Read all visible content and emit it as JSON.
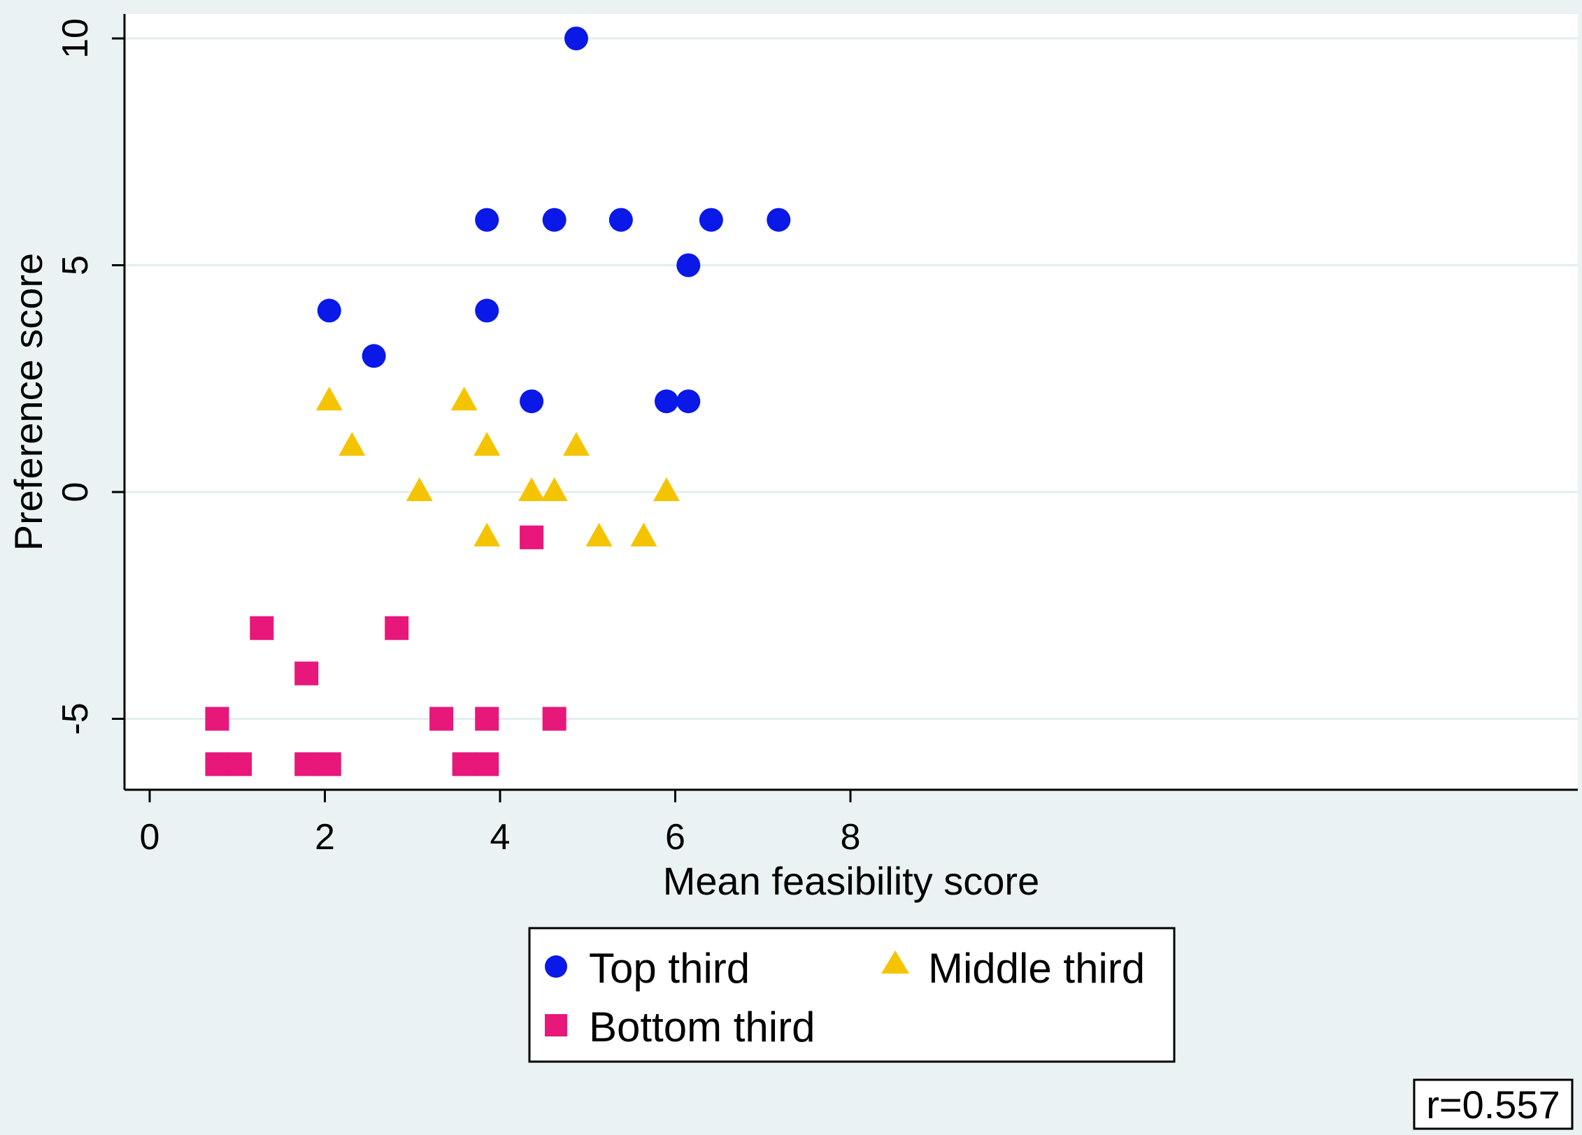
{
  "chart_data": {
    "type": "scatter",
    "xlabel": "Mean feasibility score",
    "ylabel": "Preference score",
    "xlim": [
      0,
      8
    ],
    "ylim": [
      -6.5,
      10.5
    ],
    "xticks": [
      0,
      2,
      4,
      6,
      8
    ],
    "yticks": [
      -5,
      0,
      5,
      10
    ],
    "xtick_labels": [
      "0",
      "2",
      "4",
      "6",
      "8"
    ],
    "ytick_labels": [
      "-5",
      "0",
      "5",
      "10"
    ],
    "grid": "horizontal",
    "legend_position": "bottom",
    "annotation": "r=0.557",
    "series": [
      {
        "name": "Top third",
        "marker": "circle",
        "color": "#0a18e8",
        "points": [
          [
            2.05,
            4
          ],
          [
            2.56,
            3
          ],
          [
            3.85,
            6
          ],
          [
            3.85,
            4
          ],
          [
            4.36,
            2
          ],
          [
            4.62,
            6
          ],
          [
            4.87,
            10
          ],
          [
            5.38,
            6
          ],
          [
            5.9,
            2
          ],
          [
            6.15,
            2
          ],
          [
            6.15,
            5
          ],
          [
            6.41,
            6
          ],
          [
            7.18,
            6
          ]
        ]
      },
      {
        "name": "Middle third",
        "marker": "triangle",
        "color": "#f5c400",
        "points": [
          [
            2.05,
            2
          ],
          [
            2.31,
            1
          ],
          [
            3.08,
            0
          ],
          [
            3.59,
            2
          ],
          [
            3.85,
            1
          ],
          [
            3.85,
            -1
          ],
          [
            4.36,
            0
          ],
          [
            4.62,
            0
          ],
          [
            4.87,
            1
          ],
          [
            5.13,
            -1
          ],
          [
            5.64,
            -1
          ],
          [
            5.9,
            0
          ]
        ]
      },
      {
        "name": "Bottom third",
        "marker": "square",
        "color": "#e8177a",
        "points": [
          [
            0.77,
            -5
          ],
          [
            0.77,
            -6
          ],
          [
            1.03,
            -6
          ],
          [
            1.28,
            -3
          ],
          [
            1.79,
            -4
          ],
          [
            1.79,
            -6
          ],
          [
            2.05,
            -6
          ],
          [
            2.82,
            -3
          ],
          [
            3.33,
            -5
          ],
          [
            3.59,
            -6
          ],
          [
            3.85,
            -5
          ],
          [
            3.85,
            -6
          ],
          [
            4.36,
            -1
          ],
          [
            4.62,
            -5
          ]
        ]
      }
    ]
  }
}
